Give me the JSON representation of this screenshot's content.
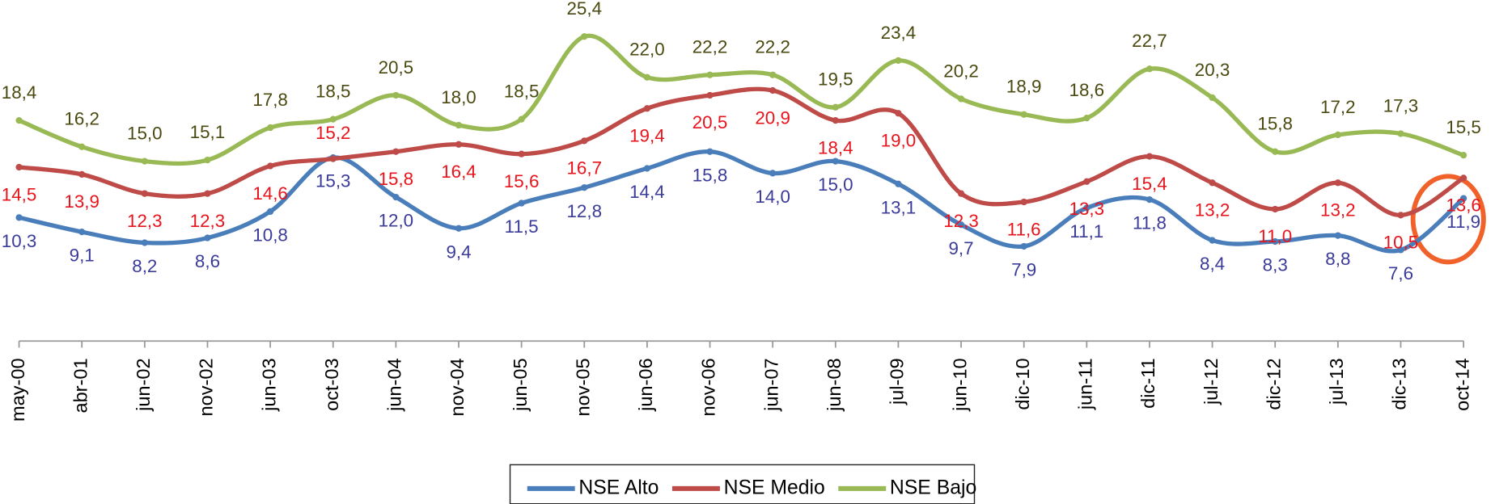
{
  "chart_data": {
    "type": "line",
    "categories": [
      "may-00",
      "abr-01",
      "jun-02",
      "nov-02",
      "jun-03",
      "oct-03",
      "jun-04",
      "nov-04",
      "jun-05",
      "nov-05",
      "jun-06",
      "nov-06",
      "jun-07",
      "jun-08",
      "jul-09",
      "jun-10",
      "dic-10",
      "jun-11",
      "dic-11",
      "jul-12",
      "dic-12",
      "jul-13",
      "dic-13",
      "oct-14"
    ],
    "ylim": [
      0,
      27
    ],
    "legend": "bottom",
    "series": [
      {
        "name": "NSE Alto",
        "color": "#4a7ebb",
        "label_color": "#3b3b9a",
        "values": [
          10.3,
          9.1,
          8.2,
          8.6,
          10.8,
          15.3,
          12.0,
          9.4,
          11.5,
          12.8,
          14.4,
          15.8,
          14.0,
          15.0,
          13.1,
          9.7,
          7.9,
          11.1,
          11.8,
          8.4,
          8.3,
          8.8,
          7.6,
          11.9
        ],
        "value_labels": [
          "10,3",
          "9,1",
          "8,2",
          "8,6",
          "10,8",
          "15,3",
          "12,0",
          "9,4",
          "11,5",
          "12,8",
          "14,4",
          "15,8",
          "14,0",
          "15,0",
          "13,1",
          "9,7",
          "7,9",
          "11,1",
          "11,8",
          "8,4",
          "8,3",
          "8,8",
          "7,6",
          "11,9"
        ]
      },
      {
        "name": "NSE Medio",
        "color": "#be4b48",
        "label_color": "#e8141c",
        "values": [
          14.5,
          13.9,
          12.3,
          12.3,
          14.6,
          15.2,
          15.8,
          16.4,
          15.6,
          16.7,
          19.4,
          20.5,
          20.9,
          18.4,
          19.0,
          12.3,
          11.6,
          13.3,
          15.4,
          13.2,
          11.0,
          13.2,
          10.5,
          13.6
        ],
        "value_labels": [
          "14,5",
          "13,9",
          "12,3",
          "12,3",
          "14,6",
          "15,2",
          "15,8",
          "16,4",
          "15,6",
          "16,7",
          "19,4",
          "20,5",
          "20,9",
          "18,4",
          "19,0",
          "12,3",
          "11,6",
          "13,3",
          "15,4",
          "13,2",
          "11,0",
          "13,2",
          "10,5",
          "13,6"
        ]
      },
      {
        "name": "NSE Bajo",
        "color": "#98b954",
        "label_color": "#4a4a10",
        "values": [
          18.4,
          16.2,
          15.0,
          15.1,
          17.8,
          18.5,
          20.5,
          18.0,
          18.5,
          25.4,
          22.0,
          22.2,
          22.2,
          19.5,
          23.4,
          20.2,
          18.9,
          18.6,
          22.7,
          20.3,
          15.8,
          17.2,
          17.3,
          15.5
        ],
        "value_labels": [
          "18,4",
          "16,2",
          "15,0",
          "15,1",
          "17,8",
          "18,5",
          "20,5",
          "18,0",
          "18,5",
          "25,4",
          "22,0",
          "22,2",
          "22,2",
          "19,5",
          "23,4",
          "20,2",
          "18,9",
          "18,6",
          "22,7",
          "20,3",
          "15,8",
          "17,2",
          "17,3",
          "15,5"
        ]
      }
    ]
  }
}
